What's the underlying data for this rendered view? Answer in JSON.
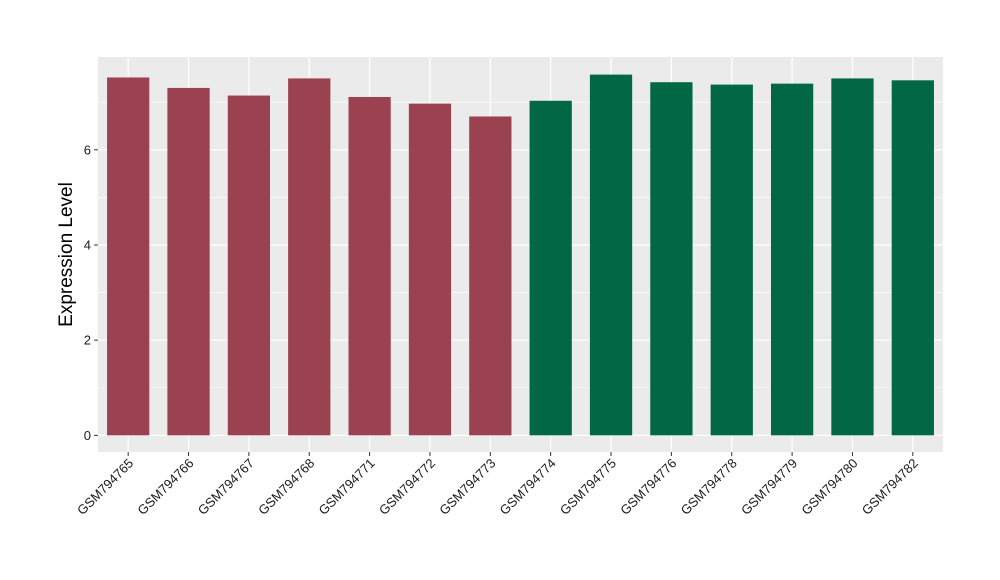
{
  "chart_data": {
    "type": "bar",
    "title": "",
    "xlabel": "",
    "ylabel": "Expression Level",
    "ylim": [
      -0.35,
      7.95
    ],
    "yticks": [
      0,
      2,
      4,
      6
    ],
    "grid": true,
    "legend": "none",
    "categories": [
      "GSM794765",
      "GSM794766",
      "GSM794767",
      "GSM794768",
      "GSM794771",
      "GSM794772",
      "GSM794773",
      "GSM794774",
      "GSM794775",
      "GSM794776",
      "GSM794778",
      "GSM794779",
      "GSM794780",
      "GSM794782"
    ],
    "values": [
      7.52,
      7.3,
      7.14,
      7.5,
      7.11,
      6.97,
      6.7,
      7.03,
      7.58,
      7.42,
      7.37,
      7.39,
      7.5,
      7.46
    ],
    "bar_colors": [
      "#9a4250",
      "#9a4250",
      "#9a4250",
      "#9a4250",
      "#9a4250",
      "#9a4250",
      "#9a4250",
      "#016745",
      "#016745",
      "#016745",
      "#016745",
      "#016745",
      "#016745",
      "#016745"
    ],
    "panel_background": "#ebebeb",
    "grid_color": "#ffffff"
  }
}
